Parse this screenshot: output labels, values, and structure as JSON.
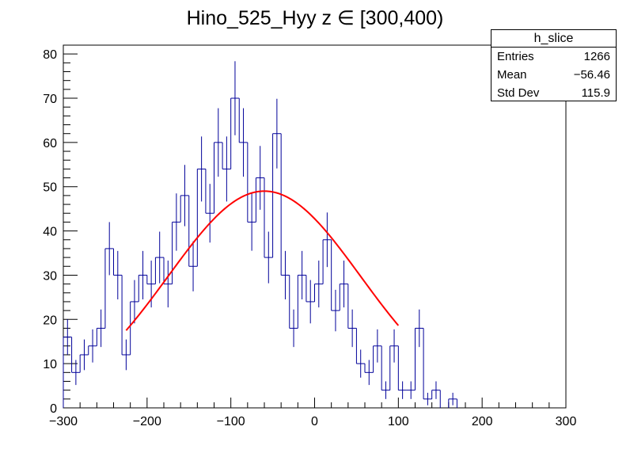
{
  "chart_data": {
    "type": "histogram",
    "title": "Hino_525_Hyy z  ∈ [300,400)",
    "xlabel": "",
    "ylabel": "",
    "xlim": [
      -300,
      300
    ],
    "ylim": [
      0,
      82
    ],
    "bin_width": 10,
    "x_ticks": [
      -300,
      -200,
      -100,
      0,
      100,
      200,
      300
    ],
    "x_tick_labels": [
      "−300",
      "−200",
      "−100",
      "0",
      "100",
      "200",
      "300"
    ],
    "y_ticks": [
      0,
      10,
      20,
      30,
      40,
      50,
      60,
      70,
      80
    ],
    "y_tick_labels": [
      "0",
      "10",
      "20",
      "30",
      "40",
      "50",
      "60",
      "70",
      "80"
    ],
    "bins_low_edges": [
      -300,
      -290,
      -280,
      -270,
      -260,
      -250,
      -240,
      -230,
      -220,
      -210,
      -200,
      -190,
      -180,
      -170,
      -160,
      -150,
      -140,
      -130,
      -120,
      -110,
      -100,
      -90,
      -80,
      -70,
      -60,
      -50,
      -40,
      -30,
      -20,
      -10,
      0,
      10,
      20,
      30,
      40,
      50,
      60,
      70,
      80,
      90,
      100,
      110,
      120,
      130,
      140,
      150,
      160,
      170,
      180,
      190,
      200,
      210,
      220,
      230,
      240,
      250,
      260,
      270,
      280,
      290
    ],
    "counts": [
      16,
      8,
      12,
      14,
      18,
      36,
      30,
      12,
      24,
      30,
      28,
      34,
      28,
      42,
      48,
      32,
      54,
      44,
      60,
      54,
      70,
      60,
      42,
      52,
      34,
      62,
      30,
      18,
      30,
      24,
      28,
      38,
      22,
      28,
      18,
      10,
      8,
      14,
      4,
      14,
      4,
      4,
      18,
      2,
      4,
      0,
      2,
      0,
      0,
      0,
      0,
      0,
      0,
      0,
      0,
      0,
      0,
      0,
      0,
      0
    ],
    "fit": {
      "type": "gaussian",
      "color": "#ff0000",
      "x_range": [
        -225,
        100
      ],
      "amplitude": 49,
      "mean": -60,
      "sigma": 115
    },
    "histogram_color": "#000099",
    "stats": {
      "name": "h_slice",
      "entries_label": "Entries",
      "entries": "1266",
      "mean_label": "Mean",
      "mean": "−56.46",
      "stddev_label": "Std Dev",
      "stddev": "115.9"
    }
  }
}
